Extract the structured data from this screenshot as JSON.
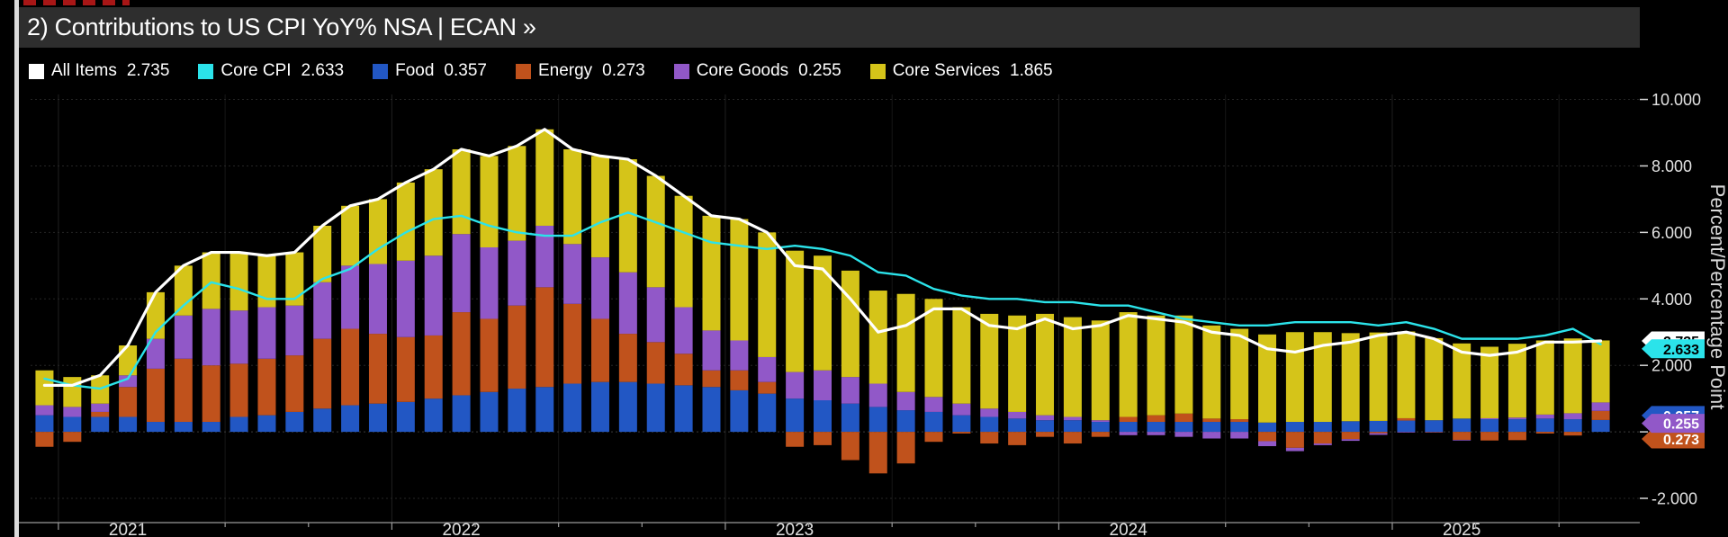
{
  "window": {
    "title": "2) Contributions to US CPI YoY% NSA | ECAN »"
  },
  "legend": {
    "items": [
      {
        "label": "All Items",
        "value": "2.735",
        "color": "#ffffff"
      },
      {
        "label": "Core CPI",
        "value": "2.633",
        "color": "#2be3ea"
      },
      {
        "label": "Food",
        "value": "0.357",
        "color": "#2257c4"
      },
      {
        "label": "Energy",
        "value": "0.273",
        "color": "#c0521c"
      },
      {
        "label": "Core Goods",
        "value": "0.255",
        "color": "#9158c8"
      },
      {
        "label": "Core Services",
        "value": "1.865",
        "color": "#d5c419"
      }
    ]
  },
  "chart_data": {
    "type": "bar",
    "subtype": "stacked-bars-with-lines",
    "title": "Contributions to US CPI YoY% NSA",
    "ylabel": "Percent/Percentage Point",
    "x_start_month": "2020-12",
    "x_frequency": "monthly",
    "n_points": 57,
    "ylim": [
      -2.73,
      10.15
    ],
    "yticks": [
      10,
      8,
      6,
      4,
      2,
      0,
      -2
    ],
    "ytick_labels": [
      "10.000",
      "8.000",
      "6.000",
      "4.000",
      "2.000",
      "0.000",
      "-2.000"
    ],
    "xtick_labels": [
      "2021",
      "2022",
      "2023",
      "2024",
      "2025"
    ],
    "grid": true,
    "legend_position": "top",
    "bar_series": [
      {
        "name": "Food",
        "color": "#2257c4",
        "values": [
          0.5,
          0.45,
          0.45,
          0.45,
          0.3,
          0.3,
          0.3,
          0.45,
          0.5,
          0.6,
          0.7,
          0.8,
          0.85,
          0.9,
          1.0,
          1.1,
          1.2,
          1.3,
          1.35,
          1.45,
          1.5,
          1.5,
          1.45,
          1.4,
          1.35,
          1.25,
          1.15,
          1.0,
          0.95,
          0.85,
          0.75,
          0.65,
          0.6,
          0.5,
          0.45,
          0.4,
          0.35,
          0.35,
          0.3,
          0.3,
          0.3,
          0.3,
          0.3,
          0.3,
          0.28,
          0.3,
          0.3,
          0.32,
          0.33,
          0.34,
          0.35,
          0.4,
          0.38,
          0.38,
          0.4,
          0.38,
          0.357
        ]
      },
      {
        "name": "Energy",
        "color": "#c0521c",
        "values": [
          -0.45,
          -0.3,
          0.15,
          0.9,
          1.6,
          1.9,
          1.7,
          1.6,
          1.7,
          1.7,
          2.1,
          2.3,
          2.1,
          1.95,
          1.9,
          2.5,
          2.2,
          2.5,
          3.0,
          2.4,
          1.9,
          1.45,
          1.25,
          0.95,
          0.5,
          0.6,
          0.35,
          -0.45,
          -0.4,
          -0.85,
          -1.25,
          -0.95,
          -0.3,
          -0.05,
          -0.35,
          -0.4,
          -0.15,
          -0.35,
          -0.15,
          0.15,
          0.2,
          0.25,
          0.1,
          0.08,
          -0.28,
          -0.48,
          -0.35,
          -0.22,
          -0.04,
          0.07,
          -0.01,
          -0.24,
          -0.26,
          -0.25,
          -0.05,
          -0.11,
          0.273
        ]
      },
      {
        "name": "Core Goods",
        "color": "#9158c8",
        "values": [
          0.3,
          0.3,
          0.25,
          0.35,
          0.9,
          1.3,
          1.7,
          1.6,
          1.55,
          1.5,
          1.7,
          1.9,
          2.1,
          2.3,
          2.4,
          2.35,
          2.15,
          1.95,
          1.85,
          1.8,
          1.85,
          1.85,
          1.65,
          1.4,
          1.2,
          0.9,
          0.75,
          0.8,
          0.9,
          0.8,
          0.7,
          0.55,
          0.45,
          0.35,
          0.25,
          0.2,
          0.15,
          0.1,
          0.05,
          -0.1,
          -0.1,
          -0.15,
          -0.2,
          -0.2,
          -0.15,
          -0.1,
          -0.05,
          -0.05,
          -0.05,
          -0.02,
          -0.01,
          -0.02,
          0.03,
          0.05,
          0.12,
          0.18,
          0.255
        ]
      },
      {
        "name": "Core Services",
        "color": "#d5c419",
        "values": [
          1.05,
          0.9,
          0.85,
          0.9,
          1.4,
          1.5,
          1.7,
          1.75,
          1.55,
          1.6,
          1.7,
          1.8,
          1.95,
          2.35,
          2.6,
          2.55,
          2.75,
          2.85,
          2.9,
          2.85,
          3.05,
          3.4,
          3.35,
          3.35,
          3.45,
          3.65,
          3.75,
          3.65,
          3.45,
          3.2,
          2.8,
          2.95,
          2.95,
          2.9,
          2.85,
          2.9,
          3.05,
          3.0,
          3.0,
          3.15,
          3.0,
          2.95,
          2.8,
          2.72,
          2.65,
          2.7,
          2.7,
          2.65,
          2.66,
          2.61,
          2.47,
          2.26,
          2.15,
          2.22,
          2.23,
          2.25,
          1.865
        ]
      }
    ],
    "line_series": [
      {
        "name": "Core CPI",
        "color": "#2be3ea",
        "width": 2.4,
        "values": [
          1.6,
          1.4,
          1.3,
          1.6,
          3.0,
          3.8,
          4.5,
          4.3,
          4.0,
          4.0,
          4.6,
          4.9,
          5.5,
          6.0,
          6.4,
          6.5,
          6.2,
          6.0,
          5.9,
          5.9,
          6.3,
          6.6,
          6.3,
          6.0,
          5.7,
          5.6,
          5.5,
          5.6,
          5.5,
          5.3,
          4.8,
          4.7,
          4.3,
          4.1,
          4.0,
          4.0,
          3.9,
          3.9,
          3.8,
          3.8,
          3.6,
          3.4,
          3.3,
          3.2,
          3.2,
          3.3,
          3.3,
          3.3,
          3.2,
          3.3,
          3.1,
          2.8,
          2.8,
          2.8,
          2.9,
          3.1,
          2.633
        ]
      },
      {
        "name": "All Items",
        "color": "#ffffff",
        "width": 3.2,
        "values": [
          1.4,
          1.4,
          1.7,
          2.6,
          4.2,
          5.0,
          5.4,
          5.4,
          5.3,
          5.4,
          6.2,
          6.8,
          7.0,
          7.5,
          7.9,
          8.5,
          8.3,
          8.6,
          9.1,
          8.5,
          8.3,
          8.2,
          7.7,
          7.1,
          6.5,
          6.4,
          6.0,
          5.0,
          4.9,
          4.0,
          3.0,
          3.2,
          3.7,
          3.7,
          3.2,
          3.1,
          3.4,
          3.1,
          3.2,
          3.5,
          3.4,
          3.3,
          3.0,
          2.9,
          2.5,
          2.4,
          2.6,
          2.7,
          2.9,
          3.0,
          2.8,
          2.4,
          2.3,
          2.4,
          2.7,
          2.7,
          2.735
        ]
      }
    ],
    "axis_badges": [
      {
        "label": "2.735",
        "value": 2.735,
        "bg": "#ffffff",
        "fg": "#000000"
      },
      {
        "label": "2.633",
        "value": 2.633,
        "bg": "#2be3ea",
        "fg": "#000000"
      },
      {
        "label": "0.357",
        "value": 0.357,
        "bg": "#2257c4",
        "fg": "#ffffff"
      },
      {
        "label": "0.273",
        "value": 0.273,
        "bg": "#c0521c",
        "fg": "#ffffff"
      },
      {
        "label": "0.255",
        "value": 0.255,
        "bg": "#9158c8",
        "fg": "#ffffff"
      }
    ]
  }
}
